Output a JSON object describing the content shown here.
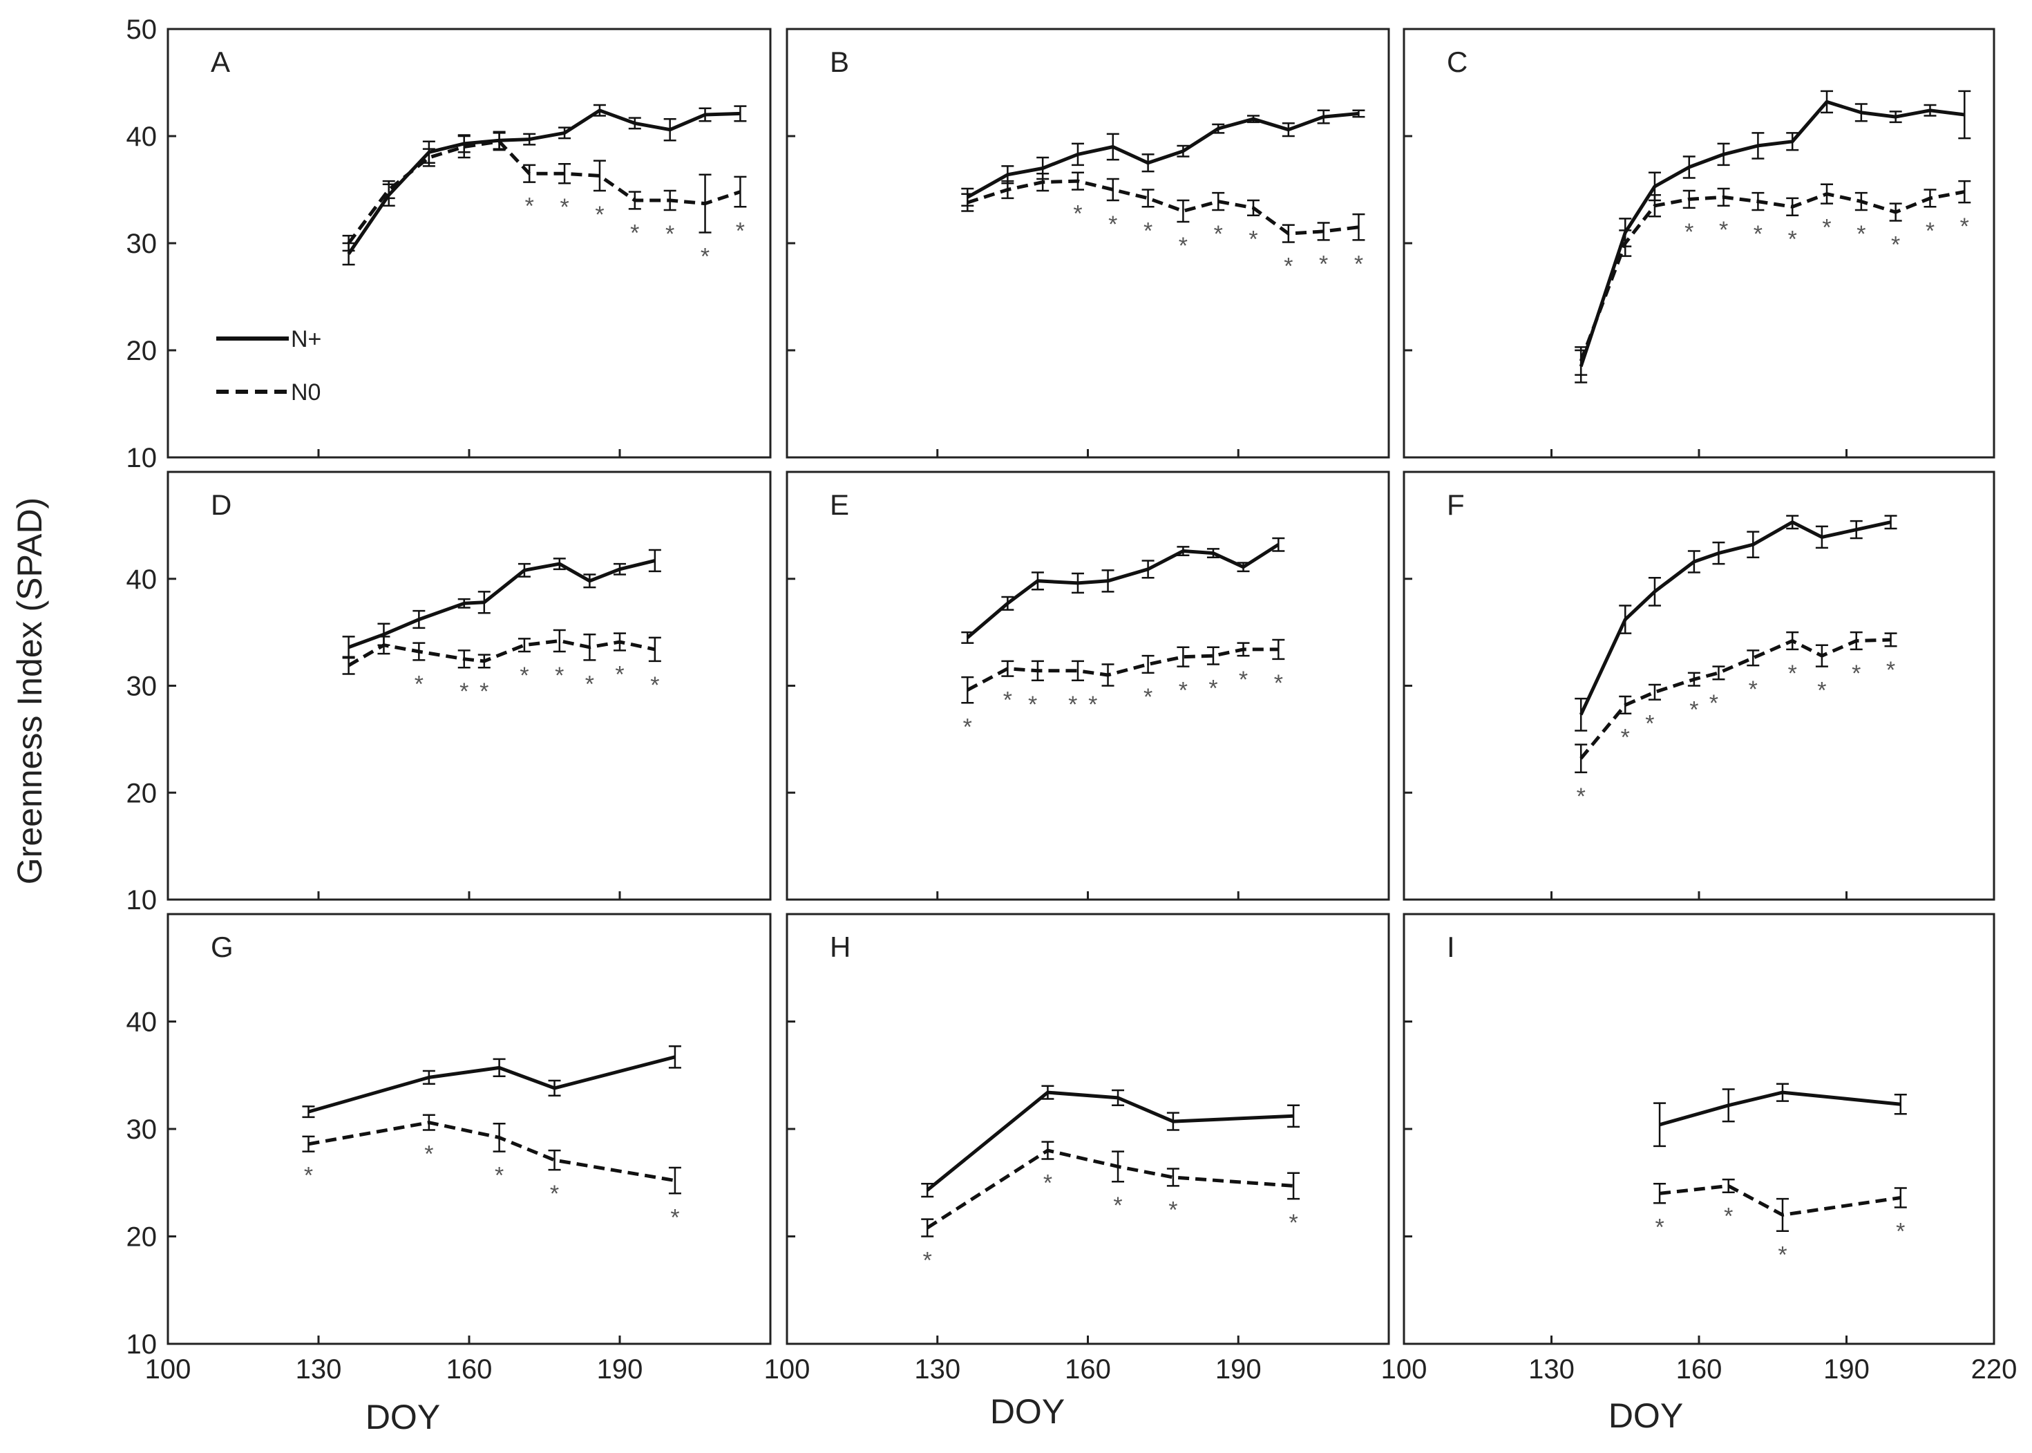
{
  "figure": {
    "y_axis_title": "Greenness Index (SPAD)",
    "x_axis_title": "DOY",
    "legend": [
      {
        "label": "N+",
        "style": "solid"
      },
      {
        "label": "N0",
        "style": "dashed"
      }
    ],
    "significance_marker": "*"
  },
  "chart_data": [
    {
      "type": "line",
      "panel": "A",
      "xlim": [
        100,
        220
      ],
      "ylim": [
        10,
        50
      ],
      "x_ticks": [
        100,
        130,
        160,
        190,
        220
      ],
      "y_ticks": [
        10,
        20,
        30,
        40,
        50
      ],
      "series": [
        {
          "name": "N+",
          "x": [
            136,
            144,
            152,
            159,
            166,
            172,
            179,
            186,
            193,
            200,
            207,
            214
          ],
          "values": [
            29.0,
            34.5,
            38.5,
            39.3,
            39.6,
            39.7,
            40.3,
            42.4,
            41.2,
            40.6,
            42.0,
            42.1
          ],
          "errors": [
            1.0,
            1.0,
            1.0,
            0.8,
            0.8,
            0.5,
            0.5,
            0.5,
            0.5,
            1.0,
            0.6,
            0.7
          ]
        },
        {
          "name": "N0",
          "x": [
            136,
            144,
            152,
            159,
            166,
            172,
            179,
            186,
            193,
            200,
            207,
            214
          ],
          "values": [
            30.0,
            35.0,
            38.0,
            39.0,
            39.5,
            36.5,
            36.5,
            36.3,
            34.0,
            34.0,
            33.7,
            34.8
          ],
          "errors": [
            0.7,
            0.8,
            0.8,
            1.0,
            0.8,
            0.8,
            0.9,
            1.4,
            0.8,
            0.9,
            2.7,
            1.4
          ]
        }
      ],
      "significant_x": [
        172,
        179,
        186,
        193,
        200,
        207,
        214
      ],
      "significant_labels": [
        "*",
        "*",
        "*",
        "*",
        "*",
        "*",
        "*"
      ]
    },
    {
      "type": "line",
      "panel": "B",
      "xlim": [
        100,
        220
      ],
      "ylim": [
        10,
        50
      ],
      "x_ticks": [
        100,
        130,
        160,
        190,
        220
      ],
      "y_ticks": [
        10,
        20,
        30,
        40,
        50
      ],
      "series": [
        {
          "name": "N+",
          "x": [
            136,
            144,
            151,
            158,
            165,
            172,
            179,
            186,
            193,
            200,
            207,
            214
          ],
          "values": [
            34.3,
            36.4,
            37.0,
            38.3,
            39.0,
            37.5,
            38.6,
            40.7,
            41.6,
            40.6,
            41.8,
            42.1
          ],
          "errors": [
            0.8,
            0.8,
            1.0,
            1.0,
            1.2,
            0.8,
            0.5,
            0.4,
            0.3,
            0.6,
            0.6,
            0.3
          ]
        },
        {
          "name": "N0",
          "x": [
            136,
            144,
            151,
            158,
            165,
            172,
            179,
            186,
            193,
            200,
            207,
            214
          ],
          "values": [
            33.8,
            35.0,
            35.7,
            35.8,
            35.0,
            34.2,
            33.0,
            33.9,
            33.3,
            30.9,
            31.1,
            31.5
          ],
          "errors": [
            0.8,
            0.8,
            0.8,
            0.8,
            1.0,
            0.8,
            1.0,
            0.8,
            0.7,
            0.8,
            0.8,
            1.2
          ]
        }
      ],
      "significant_x": [
        158,
        165,
        172,
        179,
        186,
        193,
        200,
        207,
        214
      ],
      "significant_labels": [
        "*",
        "*",
        "*",
        "*",
        "*",
        "*",
        "*",
        "*",
        "*"
      ]
    },
    {
      "type": "line",
      "panel": "C",
      "xlim": [
        100,
        220
      ],
      "ylim": [
        10,
        50
      ],
      "x_ticks": [
        100,
        130,
        160,
        190,
        220
      ],
      "y_ticks": [
        10,
        20,
        30,
        40,
        50
      ],
      "series": [
        {
          "name": "N+",
          "x": [
            136,
            145,
            151,
            158,
            165,
            172,
            179,
            186,
            193,
            200,
            207,
            214
          ],
          "values": [
            18.5,
            31.0,
            35.3,
            37.1,
            38.3,
            39.1,
            39.5,
            43.2,
            42.2,
            41.8,
            42.4,
            42.0
          ],
          "errors": [
            1.5,
            1.3,
            1.3,
            1.0,
            1.0,
            1.2,
            0.8,
            1.0,
            0.8,
            0.5,
            0.5,
            2.2
          ]
        },
        {
          "name": "N0",
          "x": [
            136,
            145,
            151,
            158,
            165,
            172,
            179,
            186,
            193,
            200,
            207,
            214
          ],
          "values": [
            19.0,
            30.0,
            33.5,
            34.1,
            34.3,
            33.9,
            33.4,
            34.6,
            33.9,
            32.9,
            34.2,
            34.8
          ],
          "errors": [
            1.3,
            1.2,
            1.0,
            0.8,
            0.8,
            0.8,
            0.8,
            0.9,
            0.8,
            0.8,
            0.8,
            1.0
          ]
        }
      ],
      "significant_x": [
        158,
        165,
        172,
        179,
        186,
        193,
        200,
        207,
        214
      ],
      "significant_labels": [
        "*",
        "*",
        "*",
        "*",
        "*",
        "*",
        "*",
        "*",
        "*"
      ]
    },
    {
      "type": "line",
      "panel": "D",
      "xlim": [
        100,
        220
      ],
      "ylim": [
        10,
        50
      ],
      "x_ticks": [
        100,
        130,
        160,
        190,
        220
      ],
      "y_ticks": [
        10,
        20,
        30,
        40
      ],
      "series": [
        {
          "name": "N+",
          "x": [
            136,
            143,
            150,
            159,
            163,
            171,
            178,
            184,
            190,
            197
          ],
          "values": [
            33.6,
            34.8,
            36.2,
            37.7,
            37.8,
            40.8,
            41.4,
            39.8,
            40.9,
            41.7
          ],
          "errors": [
            1.0,
            1.0,
            0.8,
            0.4,
            1.0,
            0.6,
            0.5,
            0.6,
            0.5,
            1.0
          ]
        },
        {
          "name": "N0",
          "x": [
            136,
            143,
            150,
            159,
            163,
            171,
            178,
            184,
            190,
            197
          ],
          "values": [
            31.9,
            33.8,
            33.2,
            32.5,
            32.3,
            33.8,
            34.2,
            33.6,
            34.1,
            33.4
          ],
          "errors": [
            0.8,
            0.8,
            0.8,
            0.8,
            0.6,
            0.6,
            1.0,
            1.2,
            0.8,
            1.1
          ]
        }
      ],
      "significant_x": [
        150,
        159,
        163,
        171,
        178,
        184,
        190,
        197
      ],
      "significant_labels": [
        "*",
        "*",
        "*",
        "*",
        "*",
        "*",
        "*",
        "*"
      ]
    },
    {
      "type": "line",
      "panel": "E",
      "xlim": [
        100,
        220
      ],
      "ylim": [
        10,
        50
      ],
      "x_ticks": [
        100,
        130,
        160,
        190,
        220
      ],
      "y_ticks": [
        10,
        20,
        30,
        40
      ],
      "series": [
        {
          "name": "N+",
          "x": [
            136,
            144,
            150,
            158,
            164,
            172,
            179,
            185,
            191,
            198
          ],
          "values": [
            34.5,
            37.7,
            39.8,
            39.6,
            39.8,
            40.9,
            42.6,
            42.4,
            41.1,
            43.2
          ],
          "errors": [
            0.5,
            0.6,
            0.8,
            0.9,
            1.0,
            0.8,
            0.4,
            0.4,
            0.4,
            0.6
          ]
        },
        {
          "name": "N0",
          "x": [
            136,
            144,
            150,
            158,
            164,
            172,
            179,
            185,
            191,
            198
          ],
          "values": [
            29.6,
            31.6,
            31.4,
            31.4,
            31.0,
            32.0,
            32.7,
            32.8,
            33.4,
            33.4
          ],
          "errors": [
            1.2,
            0.7,
            0.9,
            0.9,
            1.0,
            0.8,
            0.9,
            0.8,
            0.6,
            0.9
          ]
        }
      ],
      "significant_x": [
        136,
        144,
        149,
        157,
        161,
        172,
        179,
        185,
        191,
        198
      ],
      "significant_labels": [
        "*",
        "*",
        "*",
        "*",
        "*",
        "*",
        "*",
        "*",
        "*",
        "*"
      ]
    },
    {
      "type": "line",
      "panel": "F",
      "xlim": [
        100,
        220
      ],
      "ylim": [
        10,
        50
      ],
      "x_ticks": [
        100,
        130,
        160,
        190,
        220
      ],
      "y_ticks": [
        10,
        20,
        30,
        40
      ],
      "series": [
        {
          "name": "N+",
          "x": [
            136,
            145,
            151,
            159,
            164,
            171,
            179,
            185,
            192,
            199
          ],
          "values": [
            27.3,
            36.2,
            38.8,
            41.6,
            42.4,
            43.2,
            45.3,
            43.9,
            44.6,
            45.3
          ],
          "errors": [
            1.5,
            1.3,
            1.3,
            1.0,
            1.0,
            1.2,
            0.6,
            1.0,
            0.8,
            0.6
          ]
        },
        {
          "name": "N0",
          "x": [
            136,
            145,
            151,
            159,
            164,
            171,
            179,
            185,
            192,
            199
          ],
          "values": [
            23.2,
            28.2,
            29.4,
            30.6,
            31.2,
            32.6,
            34.2,
            32.8,
            34.2,
            34.3
          ],
          "errors": [
            1.3,
            0.8,
            0.7,
            0.6,
            0.6,
            0.7,
            0.8,
            1.0,
            0.8,
            0.6
          ]
        }
      ],
      "significant_x": [
        136,
        145,
        150,
        159,
        163,
        171,
        179,
        185,
        192,
        199
      ],
      "significant_labels": [
        "*",
        "*",
        "*",
        "*",
        "*",
        "*",
        "*",
        "*",
        "*",
        "*"
      ]
    },
    {
      "type": "line",
      "panel": "G",
      "xlim": [
        100,
        220
      ],
      "ylim": [
        10,
        50
      ],
      "x_ticks": [
        100,
        130,
        160,
        190,
        220
      ],
      "y_ticks": [
        10,
        20,
        30,
        40
      ],
      "series": [
        {
          "name": "N+",
          "x": [
            128,
            152,
            166,
            177,
            201
          ],
          "values": [
            31.6,
            34.8,
            35.7,
            33.8,
            36.7
          ],
          "errors": [
            0.5,
            0.6,
            0.8,
            0.7,
            1.0
          ]
        },
        {
          "name": "N0",
          "x": [
            128,
            152,
            166,
            177,
            201
          ],
          "values": [
            28.6,
            30.6,
            29.2,
            27.1,
            25.2
          ],
          "errors": [
            0.7,
            0.7,
            1.3,
            0.9,
            1.2
          ]
        }
      ],
      "significant_x": [
        128,
        152,
        166,
        177,
        201
      ],
      "significant_labels": [
        "*",
        "*",
        "*",
        "*",
        "*"
      ]
    },
    {
      "type": "line",
      "panel": "H",
      "xlim": [
        100,
        220
      ],
      "ylim": [
        10,
        50
      ],
      "x_ticks": [
        100,
        130,
        160,
        190,
        220
      ],
      "y_ticks": [
        10,
        20,
        30,
        40
      ],
      "series": [
        {
          "name": "N+",
          "x": [
            128,
            152,
            166,
            177,
            201
          ],
          "values": [
            24.3,
            33.4,
            32.9,
            30.7,
            31.2
          ],
          "errors": [
            0.6,
            0.6,
            0.7,
            0.8,
            1.0
          ]
        },
        {
          "name": "N0",
          "x": [
            128,
            152,
            166,
            177,
            201
          ],
          "values": [
            20.8,
            28.0,
            26.5,
            25.5,
            24.7
          ],
          "errors": [
            0.8,
            0.8,
            1.4,
            0.8,
            1.2
          ]
        }
      ],
      "significant_x": [
        128,
        152,
        166,
        177,
        201
      ],
      "significant_labels": [
        "*",
        "*",
        "*",
        "*",
        "*"
      ]
    },
    {
      "type": "line",
      "panel": "I",
      "xlim": [
        100,
        220
      ],
      "ylim": [
        10,
        50
      ],
      "x_ticks": [
        100,
        130,
        160,
        190,
        220
      ],
      "y_ticks": [
        10,
        20,
        30,
        40
      ],
      "series": [
        {
          "name": "N+",
          "x": [
            152,
            166,
            177,
            201
          ],
          "values": [
            30.4,
            32.2,
            33.4,
            32.3
          ],
          "errors": [
            2.0,
            1.5,
            0.8,
            0.9
          ]
        },
        {
          "name": "N0",
          "x": [
            152,
            166,
            177,
            201
          ],
          "values": [
            24.0,
            24.7,
            22.0,
            23.6
          ],
          "errors": [
            0.9,
            0.6,
            1.5,
            0.9
          ]
        }
      ],
      "significant_x": [
        152,
        166,
        177,
        201
      ],
      "significant_labels": [
        "*",
        "*",
        "*",
        "*"
      ]
    }
  ]
}
